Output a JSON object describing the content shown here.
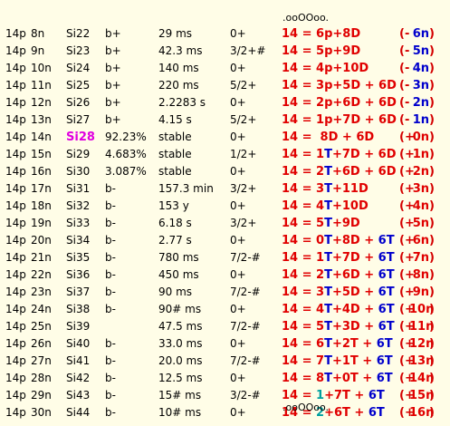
{
  "header_dots": ".ooOOoo.",
  "footer_dots": ".ooOOoo.",
  "colors": {
    "red": "#e00000",
    "blue": "#0000cc",
    "teal": "#00a0a0",
    "magenta": "#e000e0"
  },
  "rows": [
    {
      "p": "14p",
      "n": "8n",
      "iso": "Si22",
      "decay": "b+",
      "half_life": "29 ms",
      "spin": "0+",
      "eq": [
        {
          "t": "14 = 6p+8D",
          "c": "r"
        }
      ],
      "sign": "-",
      "num": "6n",
      "num_c": "b"
    },
    {
      "p": "14p",
      "n": "9n",
      "iso": "Si23",
      "decay": "b+",
      "half_life": "42.3 ms",
      "spin": "3/2+#",
      "eq": [
        {
          "t": "14 = 5p+9D",
          "c": "r"
        }
      ],
      "sign": "-",
      "num": "5n",
      "num_c": "b"
    },
    {
      "p": "14p",
      "n": "10n",
      "iso": "Si24",
      "decay": "b+",
      "half_life": "140 ms",
      "spin": "0+",
      "eq": [
        {
          "t": "14 = 4p+10D",
          "c": "r"
        }
      ],
      "sign": "-",
      "num": "4n",
      "num_c": "b"
    },
    {
      "p": "14p",
      "n": "11n",
      "iso": "Si25",
      "decay": "b+",
      "half_life": "220 ms",
      "spin": "5/2+",
      "eq": [
        {
          "t": "14 = 3p+5D + 6D",
          "c": "r"
        }
      ],
      "sign": "-",
      "num": "3n",
      "num_c": "b"
    },
    {
      "p": "14p",
      "n": "12n",
      "iso": "Si26",
      "decay": "b+",
      "half_life": "2.2283 s",
      "spin": "0+",
      "eq": [
        {
          "t": "14 = 2p+6D + 6D",
          "c": "r"
        }
      ],
      "sign": "-",
      "num": "2n",
      "num_c": "b"
    },
    {
      "p": "14p",
      "n": "13n",
      "iso": "Si27",
      "decay": "b+",
      "half_life": "4.15 s",
      "spin": "5/2+",
      "eq": [
        {
          "t": "14 = 1p+7D + 6D",
          "c": "r"
        }
      ],
      "sign": "-",
      "num": "1n",
      "num_c": "b"
    },
    {
      "p": "14p",
      "n": "14n",
      "iso": "Si28",
      "iso_hl": true,
      "decay": "92.23%",
      "half_life": "stable",
      "spin": "0+",
      "eq": [
        {
          "t": "14 =  8D + 6D",
          "c": "r"
        }
      ],
      "sign": "+",
      "num": "0n",
      "num_c": "r"
    },
    {
      "p": "14p",
      "n": "15n",
      "iso": "Si29",
      "decay": "4.683%",
      "half_life": "stable",
      "spin": "1/2+",
      "eq": [
        {
          "t": "14 = 1",
          "c": "r"
        },
        {
          "t": "T",
          "c": "b"
        },
        {
          "t": "+7D + 6D",
          "c": "r"
        }
      ],
      "sign": "+",
      "num": "1n",
      "num_c": "r"
    },
    {
      "p": "14p",
      "n": "16n",
      "iso": "Si30",
      "decay": "3.087%",
      "half_life": "stable",
      "spin": "0+",
      "eq": [
        {
          "t": "14 = 2",
          "c": "r"
        },
        {
          "t": "T",
          "c": "b"
        },
        {
          "t": "+6D + 6D",
          "c": "r"
        }
      ],
      "sign": "+",
      "num": "2n",
      "num_c": "r"
    },
    {
      "p": "14p",
      "n": "17n",
      "iso": "Si31",
      "decay": "b-",
      "half_life": "157.3 min",
      "spin": "3/2+",
      "eq": [
        {
          "t": "14 = 3",
          "c": "r"
        },
        {
          "t": "T",
          "c": "b"
        },
        {
          "t": "+11D",
          "c": "r"
        }
      ],
      "sign": "+",
      "num": "3n",
      "num_c": "r"
    },
    {
      "p": "14p",
      "n": "18n",
      "iso": "Si32",
      "decay": "b-",
      "half_life": "153 y",
      "spin": "0+",
      "eq": [
        {
          "t": "14 = 4",
          "c": "r"
        },
        {
          "t": "T",
          "c": "b"
        },
        {
          "t": "+10D",
          "c": "r"
        }
      ],
      "sign": "+",
      "num": "4n",
      "num_c": "r"
    },
    {
      "p": "14p",
      "n": "19n",
      "iso": "Si33",
      "decay": "b-",
      "half_life": "6.18 s",
      "spin": "3/2+",
      "eq": [
        {
          "t": "14 = 5",
          "c": "r"
        },
        {
          "t": "T",
          "c": "b"
        },
        {
          "t": "+9D",
          "c": "r"
        }
      ],
      "sign": "+",
      "num": "5n",
      "num_c": "r"
    },
    {
      "p": "14p",
      "n": "20n",
      "iso": "Si34",
      "decay": "b-",
      "half_life": "2.77 s",
      "spin": "0+",
      "eq": [
        {
          "t": "14 = 0",
          "c": "r"
        },
        {
          "t": "T",
          "c": "b"
        },
        {
          "t": "+8D + ",
          "c": "r"
        },
        {
          "t": "6T",
          "c": "b"
        }
      ],
      "sign": "+",
      "num": "6n",
      "num_c": "r"
    },
    {
      "p": "14p",
      "n": "21n",
      "iso": "Si35",
      "decay": "b-",
      "half_life": "780 ms",
      "spin": "7/2-#",
      "eq": [
        {
          "t": "14 = 1",
          "c": "r"
        },
        {
          "t": "T",
          "c": "b"
        },
        {
          "t": "+7D + ",
          "c": "r"
        },
        {
          "t": "6T",
          "c": "b"
        }
      ],
      "sign": "+",
      "num": "7n",
      "num_c": "r"
    },
    {
      "p": "14p",
      "n": "22n",
      "iso": "Si36",
      "decay": "b-",
      "half_life": "450 ms",
      "spin": "0+",
      "eq": [
        {
          "t": "14 = 2",
          "c": "r"
        },
        {
          "t": "T",
          "c": "b"
        },
        {
          "t": "+6D + ",
          "c": "r"
        },
        {
          "t": "6T",
          "c": "b"
        }
      ],
      "sign": "+",
      "num": "8n",
      "num_c": "r"
    },
    {
      "p": "14p",
      "n": "23n",
      "iso": "Si37",
      "decay": "b-",
      "half_life": "90 ms",
      "spin": "7/2-#",
      "eq": [
        {
          "t": "14 = 3",
          "c": "r"
        },
        {
          "t": "T",
          "c": "b"
        },
        {
          "t": "+5D + ",
          "c": "r"
        },
        {
          "t": "6T",
          "c": "b"
        }
      ],
      "sign": "+",
      "num": "9n",
      "num_c": "r"
    },
    {
      "p": "14p",
      "n": "24n",
      "iso": "Si38",
      "decay": "b-",
      "half_life": "90# ms",
      "spin": "0+",
      "eq": [
        {
          "t": "14 = 4",
          "c": "r"
        },
        {
          "t": "T",
          "c": "b"
        },
        {
          "t": "+4D + ",
          "c": "r"
        },
        {
          "t": "6T",
          "c": "b"
        }
      ],
      "sign": "+",
      "num": "10n",
      "num_c": "r"
    },
    {
      "p": "14p",
      "n": "25n",
      "iso": "Si39",
      "decay": "",
      "half_life": "47.5 ms",
      "spin": "7/2-#",
      "eq": [
        {
          "t": "14 = 5",
          "c": "r"
        },
        {
          "t": "T",
          "c": "b"
        },
        {
          "t": "+3D + ",
          "c": "r"
        },
        {
          "t": "6T",
          "c": "b"
        }
      ],
      "sign": "+",
      "num": "11n",
      "num_c": "r"
    },
    {
      "p": "14p",
      "n": "26n",
      "iso": "Si40",
      "decay": "b-",
      "half_life": "33.0 ms",
      "spin": "0+",
      "eq": [
        {
          "t": "14 = 6",
          "c": "r"
        },
        {
          "t": "T",
          "c": "b"
        },
        {
          "t": "+2T + ",
          "c": "r"
        },
        {
          "t": "6T",
          "c": "b"
        }
      ],
      "sign": "+",
      "num": "12n",
      "num_c": "r"
    },
    {
      "p": "14p",
      "n": "27n",
      "iso": "Si41",
      "decay": "b-",
      "half_life": "20.0 ms",
      "spin": "7/2-#",
      "eq": [
        {
          "t": "14 = 7",
          "c": "r"
        },
        {
          "t": "T",
          "c": "b"
        },
        {
          "t": "+1T + ",
          "c": "r"
        },
        {
          "t": "6T",
          "c": "b"
        }
      ],
      "sign": "+",
      "num": "13n",
      "num_c": "r"
    },
    {
      "p": "14p",
      "n": "28n",
      "iso": "Si42",
      "decay": "b-",
      "half_life": "12.5 ms",
      "spin": "0+",
      "eq": [
        {
          "t": "14 = 8",
          "c": "r"
        },
        {
          "t": "T",
          "c": "b"
        },
        {
          "t": "+0T + ",
          "c": "r"
        },
        {
          "t": "6T",
          "c": "b"
        }
      ],
      "sign": "+",
      "num": "14n",
      "num_c": "r"
    },
    {
      "p": "14p",
      "n": "29n",
      "iso": "Si43",
      "decay": "b-",
      "half_life": "15# ms",
      "spin": "3/2-#",
      "eq": [
        {
          "t": "14 = ",
          "c": "r"
        },
        {
          "t": "1",
          "c": "g"
        },
        {
          "t": "+7T + ",
          "c": "r"
        },
        {
          "t": "6T",
          "c": "b"
        }
      ],
      "sign": "+",
      "num": "15n",
      "num_c": "r"
    },
    {
      "p": "14p",
      "n": "30n",
      "iso": "Si44",
      "decay": "b-",
      "half_life": "10# ms",
      "spin": "0+",
      "eq": [
        {
          "t": "14 = ",
          "c": "r"
        },
        {
          "t": "2",
          "c": "g"
        },
        {
          "t": "+6T + ",
          "c": "r"
        },
        {
          "t": "6T",
          "c": "b"
        }
      ],
      "sign": "+",
      "num": "16n",
      "num_c": "r"
    }
  ]
}
